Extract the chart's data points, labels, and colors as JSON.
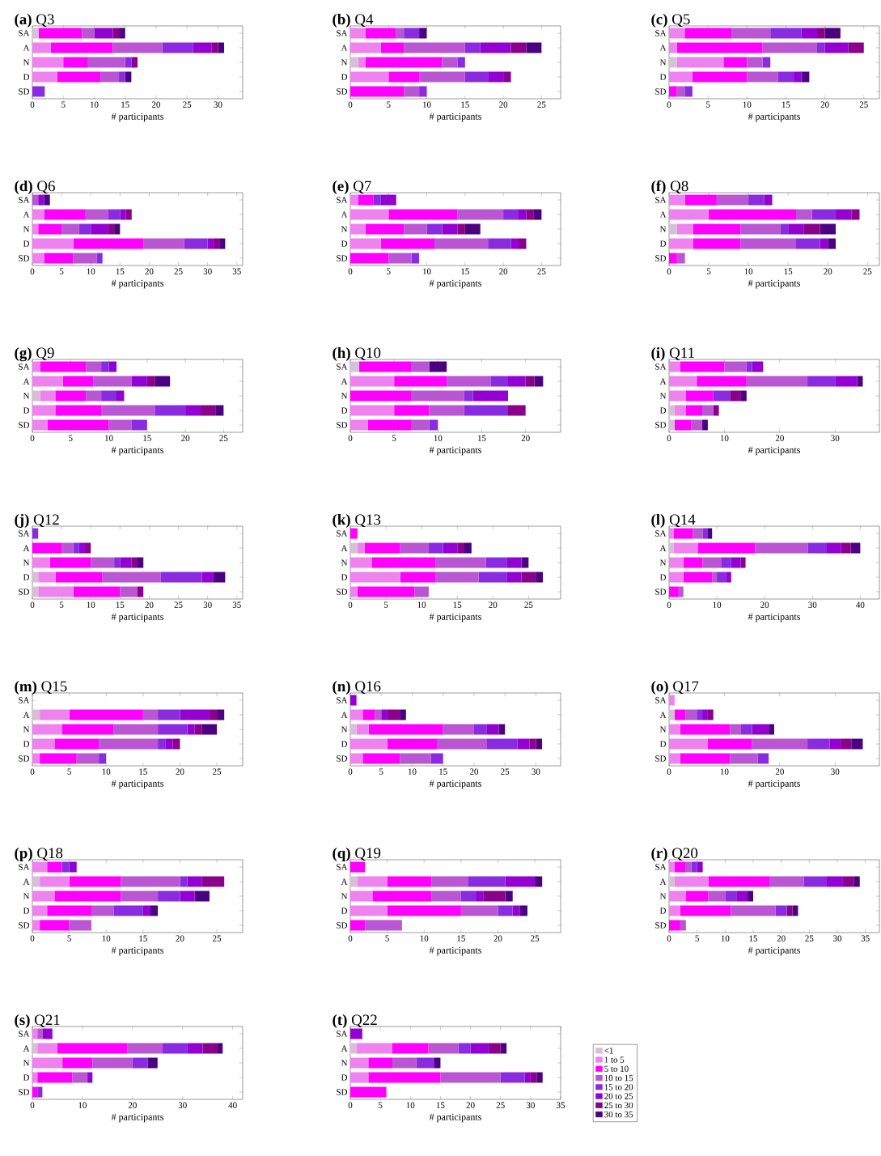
{
  "chart_data": [
    {
      "type": "bar",
      "title": "**(a)** Q3",
      "xlabel": "# participants",
      "orientation": "horizontal",
      "stacked": true,
      "categories": [
        "SA",
        "A",
        "N",
        "D",
        "SD"
      ],
      "xlim": [
        0,
        34
      ],
      "xticks": [
        0,
        5,
        10,
        15,
        20,
        25,
        30
      ],
      "series": [
        {
          "color": "#d8bfd8",
          "values": [
            1,
            0,
            0,
            0,
            0
          ]
        },
        {
          "color": "#ee82ee",
          "values": [
            0,
            3,
            5,
            4,
            0
          ]
        },
        {
          "color": "#ff00ff",
          "values": [
            7,
            10,
            4,
            7,
            0
          ]
        },
        {
          "color": "#ba55d3",
          "values": [
            2,
            8,
            6,
            3,
            0
          ]
        },
        {
          "color": "#8a2be2",
          "values": [
            0,
            5,
            1,
            1,
            2
          ]
        },
        {
          "color": "#9400d3",
          "values": [
            3,
            3,
            0,
            0,
            0
          ]
        },
        {
          "color": "#8b008b",
          "values": [
            1,
            1,
            1,
            0,
            0
          ]
        },
        {
          "color": "#4b0082",
          "values": [
            1,
            1,
            0,
            1,
            0
          ]
        }
      ]
    },
    {
      "type": "bar",
      "title": "**(b)** Q4",
      "xlabel": "# participants",
      "orientation": "horizontal",
      "stacked": true,
      "categories": [
        "SA",
        "A",
        "N",
        "D",
        "SD"
      ],
      "xlim": [
        0,
        27.5
      ],
      "xticks": [
        0,
        5,
        10,
        15,
        20,
        25
      ],
      "series": [
        {
          "color": "#d8bfd8",
          "values": [
            0,
            0,
            1,
            0,
            0
          ]
        },
        {
          "color": "#ee82ee",
          "values": [
            2,
            4,
            1,
            5,
            0
          ]
        },
        {
          "color": "#ff00ff",
          "values": [
            4,
            3,
            10,
            4,
            7
          ]
        },
        {
          "color": "#ba55d3",
          "values": [
            1,
            8,
            2,
            6,
            2
          ]
        },
        {
          "color": "#8a2be2",
          "values": [
            2,
            2,
            1,
            3,
            1
          ]
        },
        {
          "color": "#9400d3",
          "values": [
            0,
            4,
            0,
            2,
            0
          ]
        },
        {
          "color": "#8b008b",
          "values": [
            0,
            2,
            0,
            1,
            0
          ]
        },
        {
          "color": "#4b0082",
          "values": [
            1,
            2,
            0,
            0,
            0
          ]
        }
      ]
    },
    {
      "type": "bar",
      "title": "**(c)** Q5",
      "xlabel": "# participants",
      "orientation": "horizontal",
      "stacked": true,
      "categories": [
        "SA",
        "A",
        "N",
        "D",
        "SD"
      ],
      "xlim": [
        0,
        27
      ],
      "xticks": [
        0,
        5,
        10,
        15,
        20,
        25
      ],
      "series": [
        {
          "color": "#d8bfd8",
          "values": [
            0,
            0,
            1,
            0,
            0
          ]
        },
        {
          "color": "#ee82ee",
          "values": [
            2,
            1,
            6,
            3,
            0
          ]
        },
        {
          "color": "#ff00ff",
          "values": [
            6,
            11,
            3,
            7,
            1
          ]
        },
        {
          "color": "#ba55d3",
          "values": [
            5,
            7,
            2,
            4,
            1
          ]
        },
        {
          "color": "#8a2be2",
          "values": [
            4,
            1,
            1,
            2,
            1
          ]
        },
        {
          "color": "#9400d3",
          "values": [
            2,
            3,
            0,
            1,
            0
          ]
        },
        {
          "color": "#8b008b",
          "values": [
            1,
            2,
            0,
            0,
            0
          ]
        },
        {
          "color": "#4b0082",
          "values": [
            2,
            0,
            0,
            1,
            0
          ]
        }
      ]
    },
    {
      "type": "bar",
      "title": "**(d)** Q6",
      "xlabel": "# participants",
      "orientation": "horizontal",
      "stacked": true,
      "categories": [
        "SA",
        "A",
        "N",
        "D",
        "SD"
      ],
      "xlim": [
        0,
        36
      ],
      "xticks": [
        0,
        5,
        10,
        15,
        20,
        25,
        30,
        35
      ],
      "series": [
        {
          "color": "#d8bfd8",
          "values": [
            0,
            0,
            0,
            0,
            0
          ]
        },
        {
          "color": "#ee82ee",
          "values": [
            0,
            2,
            1,
            7,
            2
          ]
        },
        {
          "color": "#ff00ff",
          "values": [
            0,
            7,
            4,
            12,
            5
          ]
        },
        {
          "color": "#ba55d3",
          "values": [
            1,
            4,
            3,
            7,
            4
          ]
        },
        {
          "color": "#8a2be2",
          "values": [
            0,
            2,
            2,
            4,
            1
          ]
        },
        {
          "color": "#9400d3",
          "values": [
            1,
            1,
            3,
            1,
            0
          ]
        },
        {
          "color": "#8b008b",
          "values": [
            0,
            1,
            1,
            1,
            0
          ]
        },
        {
          "color": "#4b0082",
          "values": [
            1,
            0,
            1,
            1,
            0
          ]
        }
      ]
    },
    {
      "type": "bar",
      "title": "**(e)** Q7",
      "xlabel": "# participants",
      "orientation": "horizontal",
      "stacked": true,
      "categories": [
        "SA",
        "A",
        "N",
        "D",
        "SD"
      ],
      "xlim": [
        0,
        27.5
      ],
      "xticks": [
        0,
        5,
        10,
        15,
        20,
        25
      ],
      "series": [
        {
          "color": "#d8bfd8",
          "values": [
            0,
            0,
            0,
            0,
            0
          ]
        },
        {
          "color": "#ee82ee",
          "values": [
            1,
            5,
            2,
            4,
            0
          ]
        },
        {
          "color": "#ff00ff",
          "values": [
            2,
            9,
            5,
            7,
            5
          ]
        },
        {
          "color": "#ba55d3",
          "values": [
            0,
            6,
            3,
            7,
            3
          ]
        },
        {
          "color": "#8a2be2",
          "values": [
            1,
            2,
            2,
            3,
            1
          ]
        },
        {
          "color": "#9400d3",
          "values": [
            2,
            1,
            2,
            1,
            0
          ]
        },
        {
          "color": "#8b008b",
          "values": [
            0,
            1,
            1,
            1,
            0
          ]
        },
        {
          "color": "#4b0082",
          "values": [
            0,
            1,
            2,
            0,
            0
          ]
        }
      ]
    },
    {
      "type": "bar",
      "title": "**(f)** Q8",
      "xlabel": "# participants",
      "orientation": "horizontal",
      "stacked": true,
      "categories": [
        "SA",
        "A",
        "N",
        "D",
        "SD"
      ],
      "xlim": [
        0,
        26.5
      ],
      "xticks": [
        0,
        5,
        10,
        15,
        20,
        25
      ],
      "series": [
        {
          "color": "#d8bfd8",
          "values": [
            0,
            0,
            1,
            0,
            0
          ]
        },
        {
          "color": "#ee82ee",
          "values": [
            2,
            5,
            2,
            3,
            0
          ]
        },
        {
          "color": "#ff00ff",
          "values": [
            4,
            11,
            6,
            6,
            1
          ]
        },
        {
          "color": "#ba55d3",
          "values": [
            4,
            2,
            5,
            7,
            1
          ]
        },
        {
          "color": "#8a2be2",
          "values": [
            2,
            3,
            1,
            3,
            0
          ]
        },
        {
          "color": "#9400d3",
          "values": [
            1,
            2,
            2,
            1,
            0
          ]
        },
        {
          "color": "#8b008b",
          "values": [
            0,
            1,
            2,
            0,
            0
          ]
        },
        {
          "color": "#4b0082",
          "values": [
            0,
            0,
            2,
            1,
            0
          ]
        }
      ]
    },
    {
      "type": "bar",
      "title": "**(g)** Q9",
      "xlabel": "# participants",
      "orientation": "horizontal",
      "stacked": true,
      "categories": [
        "SA",
        "A",
        "N",
        "D",
        "SD"
      ],
      "xlim": [
        0,
        27.5
      ],
      "xticks": [
        0,
        5,
        10,
        15,
        20,
        25
      ],
      "series": [
        {
          "color": "#d8bfd8",
          "values": [
            0,
            0,
            1,
            0,
            0
          ]
        },
        {
          "color": "#ee82ee",
          "values": [
            1,
            4,
            2,
            3,
            2
          ]
        },
        {
          "color": "#ff00ff",
          "values": [
            6,
            4,
            4,
            6,
            8
          ]
        },
        {
          "color": "#ba55d3",
          "values": [
            2,
            5,
            2,
            7,
            3
          ]
        },
        {
          "color": "#8a2be2",
          "values": [
            1,
            0,
            2,
            4,
            2
          ]
        },
        {
          "color": "#9400d3",
          "values": [
            1,
            2,
            1,
            2,
            0
          ]
        },
        {
          "color": "#8b008b",
          "values": [
            0,
            1,
            0,
            2,
            0
          ]
        },
        {
          "color": "#4b0082",
          "values": [
            0,
            2,
            0,
            1,
            0
          ]
        }
      ]
    },
    {
      "type": "bar",
      "title": "**(h)** Q10",
      "xlabel": "# participants",
      "orientation": "horizontal",
      "stacked": true,
      "categories": [
        "SA",
        "A",
        "N",
        "D",
        "SD"
      ],
      "xlim": [
        0,
        24
      ],
      "xticks": [
        0,
        5,
        10,
        15,
        20
      ],
      "series": [
        {
          "color": "#d8bfd8",
          "values": [
            1,
            0,
            0,
            0,
            0
          ]
        },
        {
          "color": "#ee82ee",
          "values": [
            0,
            5,
            0,
            5,
            2
          ]
        },
        {
          "color": "#ff00ff",
          "values": [
            6,
            6,
            7,
            4,
            5
          ]
        },
        {
          "color": "#ba55d3",
          "values": [
            2,
            5,
            6,
            4,
            2
          ]
        },
        {
          "color": "#8a2be2",
          "values": [
            0,
            2,
            1,
            5,
            1
          ]
        },
        {
          "color": "#9400d3",
          "values": [
            0,
            2,
            4,
            0,
            0
          ]
        },
        {
          "color": "#8b008b",
          "values": [
            0,
            1,
            0,
            2,
            0
          ]
        },
        {
          "color": "#4b0082",
          "values": [
            2,
            1,
            0,
            0,
            0
          ]
        }
      ]
    },
    {
      "type": "bar",
      "title": "**(i)** Q11",
      "xlabel": "# participants",
      "orientation": "horizontal",
      "stacked": true,
      "categories": [
        "SA",
        "A",
        "N",
        "D",
        "SD"
      ],
      "xlim": [
        0,
        38
      ],
      "xticks": [
        0,
        10,
        20,
        30
      ],
      "series": [
        {
          "color": "#d8bfd8",
          "values": [
            0,
            0,
            0,
            1,
            1
          ]
        },
        {
          "color": "#ee82ee",
          "values": [
            2,
            5,
            3,
            2,
            0
          ]
        },
        {
          "color": "#ff00ff",
          "values": [
            8,
            9,
            5,
            3,
            3
          ]
        },
        {
          "color": "#ba55d3",
          "values": [
            4,
            11,
            0,
            2,
            2
          ]
        },
        {
          "color": "#8a2be2",
          "values": [
            1,
            5,
            3,
            0,
            0
          ]
        },
        {
          "color": "#9400d3",
          "values": [
            2,
            4,
            0,
            0,
            0
          ]
        },
        {
          "color": "#8b008b",
          "values": [
            0,
            0,
            2,
            1,
            0
          ]
        },
        {
          "color": "#4b0082",
          "values": [
            0,
            1,
            1,
            0,
            1
          ]
        }
      ]
    },
    {
      "type": "bar",
      "title": "**(j)** Q12",
      "xlabel": "# participants",
      "orientation": "horizontal",
      "stacked": true,
      "categories": [
        "SA",
        "A",
        "N",
        "D",
        "SD"
      ],
      "xlim": [
        0,
        36
      ],
      "xticks": [
        0,
        5,
        10,
        15,
        20,
        25,
        30,
        35
      ],
      "series": [
        {
          "color": "#d8bfd8",
          "values": [
            0,
            0,
            0,
            1,
            1
          ]
        },
        {
          "color": "#ee82ee",
          "values": [
            0,
            0,
            3,
            3,
            6
          ]
        },
        {
          "color": "#ff00ff",
          "values": [
            0,
            5,
            7,
            8,
            8
          ]
        },
        {
          "color": "#ba55d3",
          "values": [
            0,
            2,
            4,
            10,
            3
          ]
        },
        {
          "color": "#8a2be2",
          "values": [
            1,
            1,
            1,
            7,
            0
          ]
        },
        {
          "color": "#9400d3",
          "values": [
            0,
            1,
            2,
            2,
            0
          ]
        },
        {
          "color": "#8b008b",
          "values": [
            0,
            1,
            1,
            0,
            1
          ]
        },
        {
          "color": "#4b0082",
          "values": [
            0,
            0,
            1,
            2,
            0
          ]
        }
      ]
    },
    {
      "type": "bar",
      "title": "**(k)** Q13",
      "xlabel": "# participants",
      "orientation": "horizontal",
      "stacked": true,
      "categories": [
        "SA",
        "A",
        "N",
        "D",
        "SD"
      ],
      "xlim": [
        0,
        29.5
      ],
      "xticks": [
        0,
        5,
        10,
        15,
        20,
        25
      ],
      "series": [
        {
          "color": "#d8bfd8",
          "values": [
            0,
            1,
            0,
            0,
            0
          ]
        },
        {
          "color": "#ee82ee",
          "values": [
            0,
            1,
            3,
            7,
            1
          ]
        },
        {
          "color": "#ff00ff",
          "values": [
            1,
            5,
            9,
            5,
            8
          ]
        },
        {
          "color": "#ba55d3",
          "values": [
            0,
            4,
            7,
            6,
            2
          ]
        },
        {
          "color": "#8a2be2",
          "values": [
            0,
            2,
            3,
            4,
            0
          ]
        },
        {
          "color": "#9400d3",
          "values": [
            0,
            2,
            2,
            2,
            0
          ]
        },
        {
          "color": "#8b008b",
          "values": [
            0,
            1,
            0,
            2,
            0
          ]
        },
        {
          "color": "#4b0082",
          "values": [
            0,
            1,
            1,
            1,
            0
          ]
        }
      ]
    },
    {
      "type": "bar",
      "title": "**(l)** Q14",
      "xlabel": "# participants",
      "orientation": "horizontal",
      "stacked": true,
      "categories": [
        "SA",
        "A",
        "N",
        "D",
        "SD"
      ],
      "xlim": [
        0,
        44
      ],
      "xticks": [
        0,
        10,
        20,
        30,
        40
      ],
      "series": [
        {
          "color": "#d8bfd8",
          "values": [
            0,
            1,
            0,
            0,
            0
          ]
        },
        {
          "color": "#ee82ee",
          "values": [
            1,
            5,
            3,
            3,
            0
          ]
        },
        {
          "color": "#ff00ff",
          "values": [
            4,
            12,
            4,
            6,
            2
          ]
        },
        {
          "color": "#ba55d3",
          "values": [
            2,
            11,
            4,
            1,
            1
          ]
        },
        {
          "color": "#8a2be2",
          "values": [
            1,
            4,
            2,
            2,
            0
          ]
        },
        {
          "color": "#9400d3",
          "values": [
            0,
            3,
            2,
            1,
            0
          ]
        },
        {
          "color": "#8b008b",
          "values": [
            0,
            2,
            1,
            0,
            0
          ]
        },
        {
          "color": "#4b0082",
          "values": [
            1,
            2,
            0,
            0,
            0
          ]
        }
      ]
    },
    {
      "type": "bar",
      "title": "**(m)** Q15",
      "xlabel": "# participants",
      "orientation": "horizontal",
      "stacked": true,
      "categories": [
        "SA",
        "A",
        "N",
        "D",
        "SD"
      ],
      "xlim": [
        0,
        28.5
      ],
      "xticks": [
        0,
        5,
        10,
        15,
        20,
        25
      ],
      "series": [
        {
          "color": "#d8bfd8",
          "values": [
            0,
            1,
            0,
            0,
            0
          ]
        },
        {
          "color": "#ee82ee",
          "values": [
            0,
            4,
            4,
            3,
            1
          ]
        },
        {
          "color": "#ff00ff",
          "values": [
            0,
            10,
            7,
            6,
            5
          ]
        },
        {
          "color": "#ba55d3",
          "values": [
            0,
            2,
            6,
            8,
            3
          ]
        },
        {
          "color": "#8a2be2",
          "values": [
            0,
            3,
            4,
            1,
            1
          ]
        },
        {
          "color": "#9400d3",
          "values": [
            0,
            4,
            1,
            1,
            0
          ]
        },
        {
          "color": "#8b008b",
          "values": [
            0,
            1,
            1,
            1,
            0
          ]
        },
        {
          "color": "#4b0082",
          "values": [
            0,
            1,
            2,
            0,
            0
          ]
        }
      ]
    },
    {
      "type": "bar",
      "title": "**(n)** Q16",
      "xlabel": "# participants",
      "orientation": "horizontal",
      "stacked": true,
      "categories": [
        "SA",
        "A",
        "N",
        "D",
        "SD"
      ],
      "xlim": [
        0,
        34
      ],
      "xticks": [
        0,
        5,
        10,
        15,
        20,
        25,
        30
      ],
      "series": [
        {
          "color": "#d8bfd8",
          "values": [
            0,
            0,
            1,
            0,
            0
          ]
        },
        {
          "color": "#ee82ee",
          "values": [
            0,
            2,
            2,
            6,
            2
          ]
        },
        {
          "color": "#ff00ff",
          "values": [
            0,
            2,
            12,
            8,
            6
          ]
        },
        {
          "color": "#ba55d3",
          "values": [
            0,
            1,
            5,
            8,
            5
          ]
        },
        {
          "color": "#8a2be2",
          "values": [
            0,
            0,
            2,
            5,
            2
          ]
        },
        {
          "color": "#9400d3",
          "values": [
            1,
            1,
            2,
            2,
            0
          ]
        },
        {
          "color": "#8b008b",
          "values": [
            0,
            2,
            0,
            1,
            0
          ]
        },
        {
          "color": "#4b0082",
          "values": [
            0,
            1,
            1,
            1,
            0
          ]
        }
      ]
    },
    {
      "type": "bar",
      "title": "**(o)** Q17",
      "xlabel": "# participants",
      "orientation": "horizontal",
      "stacked": true,
      "categories": [
        "SA",
        "A",
        "N",
        "D",
        "SD"
      ],
      "xlim": [
        0,
        38
      ],
      "xticks": [
        0,
        10,
        20,
        30
      ],
      "series": [
        {
          "color": "#d8bfd8",
          "values": [
            0,
            1,
            0,
            0,
            0
          ]
        },
        {
          "color": "#ee82ee",
          "values": [
            1,
            0,
            2,
            7,
            2
          ]
        },
        {
          "color": "#ff00ff",
          "values": [
            0,
            2,
            9,
            8,
            9
          ]
        },
        {
          "color": "#ba55d3",
          "values": [
            0,
            2,
            2,
            10,
            5
          ]
        },
        {
          "color": "#8a2be2",
          "values": [
            0,
            1,
            2,
            4,
            2
          ]
        },
        {
          "color": "#9400d3",
          "values": [
            0,
            1,
            3,
            2,
            0
          ]
        },
        {
          "color": "#8b008b",
          "values": [
            0,
            1,
            0,
            2,
            0
          ]
        },
        {
          "color": "#4b0082",
          "values": [
            0,
            0,
            1,
            2,
            0
          ]
        }
      ]
    },
    {
      "type": "bar",
      "title": "**(p)** Q18",
      "xlabel": "# participants",
      "orientation": "horizontal",
      "stacked": true,
      "categories": [
        "SA",
        "A",
        "N",
        "D",
        "SD"
      ],
      "xlim": [
        0,
        28.5
      ],
      "xticks": [
        0,
        5,
        10,
        15,
        20,
        25
      ],
      "series": [
        {
          "color": "#d8bfd8",
          "values": [
            0,
            1,
            0,
            0,
            0
          ]
        },
        {
          "color": "#ee82ee",
          "values": [
            2,
            4,
            3,
            2,
            1
          ]
        },
        {
          "color": "#ff00ff",
          "values": [
            2,
            7,
            9,
            6,
            4
          ]
        },
        {
          "color": "#ba55d3",
          "values": [
            0,
            8,
            5,
            3,
            3
          ]
        },
        {
          "color": "#8a2be2",
          "values": [
            1,
            1,
            3,
            4,
            0
          ]
        },
        {
          "color": "#9400d3",
          "values": [
            1,
            2,
            2,
            1,
            0
          ]
        },
        {
          "color": "#8b008b",
          "values": [
            0,
            3,
            0,
            0,
            0
          ]
        },
        {
          "color": "#4b0082",
          "values": [
            0,
            0,
            2,
            1,
            0
          ]
        }
      ]
    },
    {
      "type": "bar",
      "title": "**(q)** Q19",
      "xlabel": "# participants",
      "orientation": "horizontal",
      "stacked": true,
      "categories": [
        "SA",
        "A",
        "N",
        "D",
        "SD"
      ],
      "xlim": [
        0,
        28.5
      ],
      "xticks": [
        0,
        5,
        10,
        15,
        20,
        25
      ],
      "series": [
        {
          "color": "#d8bfd8",
          "values": [
            0,
            1,
            0,
            0,
            0
          ]
        },
        {
          "color": "#ee82ee",
          "values": [
            0,
            4,
            3,
            5,
            0
          ]
        },
        {
          "color": "#ff00ff",
          "values": [
            2,
            6,
            8,
            10,
            2
          ]
        },
        {
          "color": "#ba55d3",
          "values": [
            0,
            5,
            4,
            5,
            5
          ]
        },
        {
          "color": "#8a2be2",
          "values": [
            0,
            5,
            2,
            2,
            0
          ]
        },
        {
          "color": "#9400d3",
          "values": [
            0,
            4,
            1,
            1,
            0
          ]
        },
        {
          "color": "#8b008b",
          "values": [
            0,
            0,
            3,
            0,
            0
          ]
        },
        {
          "color": "#4b0082",
          "values": [
            0,
            1,
            1,
            1,
            0
          ]
        }
      ]
    },
    {
      "type": "bar",
      "title": "**(r)** Q20",
      "xlabel": "# participants",
      "orientation": "horizontal",
      "stacked": true,
      "categories": [
        "SA",
        "A",
        "N",
        "D",
        "SD"
      ],
      "xlim": [
        0,
        37.5
      ],
      "xticks": [
        0,
        5,
        10,
        15,
        20,
        25,
        30,
        35
      ],
      "series": [
        {
          "color": "#d8bfd8",
          "values": [
            0,
            1,
            0,
            0,
            0
          ]
        },
        {
          "color": "#ee82ee",
          "values": [
            1,
            6,
            3,
            2,
            0
          ]
        },
        {
          "color": "#ff00ff",
          "values": [
            2,
            11,
            4,
            9,
            2
          ]
        },
        {
          "color": "#ba55d3",
          "values": [
            1,
            6,
            3,
            8,
            1
          ]
        },
        {
          "color": "#8a2be2",
          "values": [
            1,
            4,
            2,
            2,
            0
          ]
        },
        {
          "color": "#9400d3",
          "values": [
            1,
            3,
            2,
            0,
            0
          ]
        },
        {
          "color": "#8b008b",
          "values": [
            0,
            2,
            0,
            1,
            0
          ]
        },
        {
          "color": "#4b0082",
          "values": [
            0,
            1,
            1,
            1,
            0
          ]
        }
      ]
    },
    {
      "type": "bar",
      "title": "**(s)** Q21",
      "xlabel": "# participants",
      "orientation": "horizontal",
      "stacked": true,
      "categories": [
        "SA",
        "A",
        "N",
        "D",
        "SD"
      ],
      "xlim": [
        0,
        42
      ],
      "xticks": [
        0,
        10,
        20,
        30,
        40
      ],
      "series": [
        {
          "color": "#d8bfd8",
          "values": [
            0,
            1,
            0,
            0,
            0
          ]
        },
        {
          "color": "#ee82ee",
          "values": [
            1,
            4,
            6,
            1,
            0
          ]
        },
        {
          "color": "#ff00ff",
          "values": [
            0,
            14,
            6,
            7,
            1
          ]
        },
        {
          "color": "#ba55d3",
          "values": [
            1,
            7,
            8,
            3,
            0
          ]
        },
        {
          "color": "#8a2be2",
          "values": [
            0,
            5,
            3,
            0,
            1
          ]
        },
        {
          "color": "#9400d3",
          "values": [
            2,
            3,
            0,
            1,
            0
          ]
        },
        {
          "color": "#8b008b",
          "values": [
            0,
            3,
            0,
            0,
            0
          ]
        },
        {
          "color": "#4b0082",
          "values": [
            0,
            1,
            2,
            0,
            0
          ]
        }
      ]
    },
    {
      "type": "bar",
      "title": "**(t)** Q22",
      "xlabel": "# participants",
      "orientation": "horizontal",
      "stacked": true,
      "legend": "right",
      "categories": [
        "SA",
        "A",
        "N",
        "D",
        "SD"
      ],
      "xlim": [
        0,
        35
      ],
      "xticks": [
        0,
        5,
        10,
        15,
        20,
        25,
        30,
        35
      ],
      "series": [
        {
          "name": "<1",
          "color": "#d8bfd8",
          "values": [
            0,
            1,
            0,
            0,
            0
          ]
        },
        {
          "name": "1 to 5",
          "color": "#ee82ee",
          "values": [
            0,
            6,
            3,
            3,
            0
          ]
        },
        {
          "name": "5 to 10",
          "color": "#ff00ff",
          "values": [
            0,
            6,
            4,
            12,
            6
          ]
        },
        {
          "name": "10 to 15",
          "color": "#ba55d3",
          "values": [
            0,
            5,
            4,
            10,
            0
          ]
        },
        {
          "name": "15 to 20",
          "color": "#8a2be2",
          "values": [
            0,
            2,
            3,
            4,
            0
          ]
        },
        {
          "name": "20 to 25",
          "color": "#9400d3",
          "values": [
            2,
            3,
            0,
            1,
            0
          ]
        },
        {
          "name": "25 to 30",
          "color": "#8b008b",
          "values": [
            0,
            2,
            0,
            1,
            0
          ]
        },
        {
          "name": "30 to 35",
          "color": "#4b0082",
          "values": [
            0,
            1,
            1,
            1,
            0
          ]
        }
      ]
    }
  ]
}
